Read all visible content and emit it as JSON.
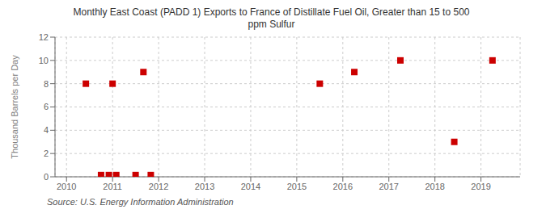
{
  "chart_data": {
    "type": "scatter",
    "title": "Monthly East Coast (PADD 1) Exports to France of Distillate Fuel Oil, Greater than 15 to 500\nppm Sulfur",
    "ylabel": "Thousand Barrels per Day",
    "annotations": [
      "Source: U.S. Energy Information Administration"
    ],
    "x": [
      2010.42,
      2010.75,
      2010.92,
      2011.0,
      2011.08,
      2011.5,
      2011.67,
      2011.83,
      2015.5,
      2016.25,
      2017.25,
      2018.42,
      2019.25
    ],
    "values": [
      8,
      0.15,
      0.15,
      8,
      0.15,
      0.15,
      9,
      0.15,
      8,
      9,
      10,
      3,
      10
    ],
    "color": "#cc0000",
    "marker": "square",
    "xlim": [
      2009.75,
      2019.85
    ],
    "xticks": [
      2010,
      2011,
      2012,
      2013,
      2014,
      2015,
      2016,
      2017,
      2018,
      2019
    ],
    "ylim": [
      0,
      12
    ],
    "yticks": [
      0,
      2,
      4,
      6,
      8,
      10,
      12
    ],
    "grid": true
  }
}
